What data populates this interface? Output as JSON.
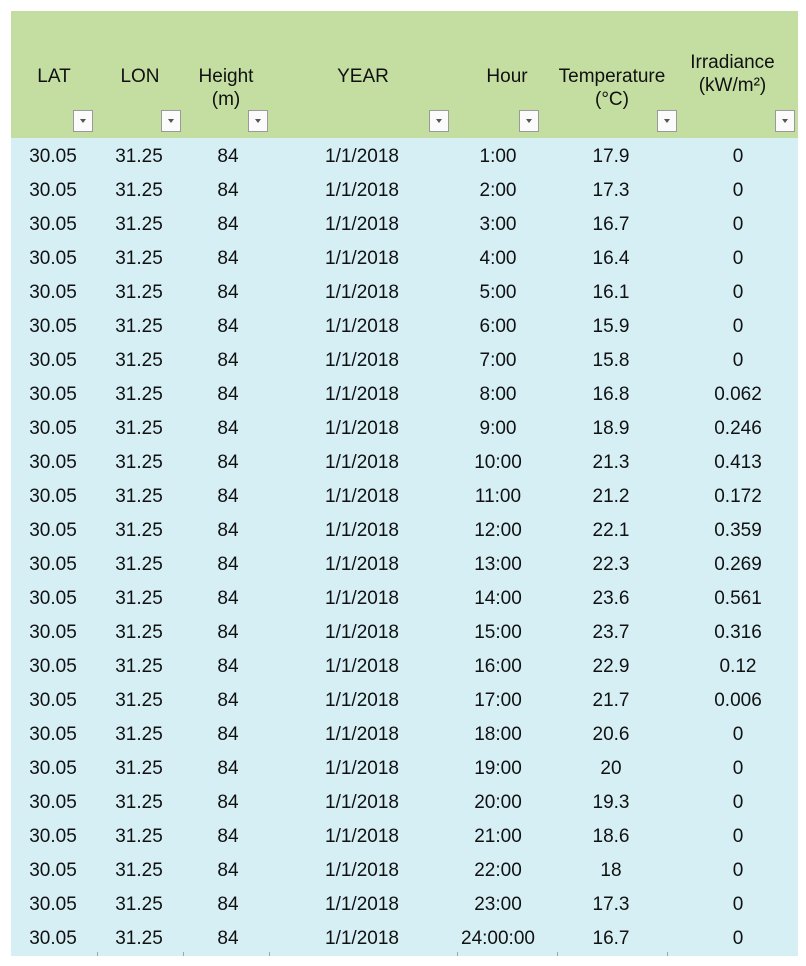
{
  "columns": [
    {
      "key": "lat",
      "label_lines": [
        "LAT"
      ]
    },
    {
      "key": "lon",
      "label_lines": [
        "LON"
      ]
    },
    {
      "key": "height",
      "label_lines": [
        "Height",
        "(m)"
      ]
    },
    {
      "key": "year",
      "label_lines": [
        "YEAR"
      ]
    },
    {
      "key": "hour",
      "label_lines": [
        "Hour"
      ]
    },
    {
      "key": "temperature",
      "label_lines": [
        "Temperature",
        "(°C)"
      ]
    },
    {
      "key": "irradiance",
      "label_lines": [
        "Irradiance",
        "(kW/m²)"
      ]
    }
  ],
  "rows": [
    [
      "30.05",
      "31.25",
      "84",
      "1/1/2018",
      "1:00",
      "17.9",
      "0"
    ],
    [
      "30.05",
      "31.25",
      "84",
      "1/1/2018",
      "2:00",
      "17.3",
      "0"
    ],
    [
      "30.05",
      "31.25",
      "84",
      "1/1/2018",
      "3:00",
      "16.7",
      "0"
    ],
    [
      "30.05",
      "31.25",
      "84",
      "1/1/2018",
      "4:00",
      "16.4",
      "0"
    ],
    [
      "30.05",
      "31.25",
      "84",
      "1/1/2018",
      "5:00",
      "16.1",
      "0"
    ],
    [
      "30.05",
      "31.25",
      "84",
      "1/1/2018",
      "6:00",
      "15.9",
      "0"
    ],
    [
      "30.05",
      "31.25",
      "84",
      "1/1/2018",
      "7:00",
      "15.8",
      "0"
    ],
    [
      "30.05",
      "31.25",
      "84",
      "1/1/2018",
      "8:00",
      "16.8",
      "0.062"
    ],
    [
      "30.05",
      "31.25",
      "84",
      "1/1/2018",
      "9:00",
      "18.9",
      "0.246"
    ],
    [
      "30.05",
      "31.25",
      "84",
      "1/1/2018",
      "10:00",
      "21.3",
      "0.413"
    ],
    [
      "30.05",
      "31.25",
      "84",
      "1/1/2018",
      "11:00",
      "21.2",
      "0.172"
    ],
    [
      "30.05",
      "31.25",
      "84",
      "1/1/2018",
      "12:00",
      "22.1",
      "0.359"
    ],
    [
      "30.05",
      "31.25",
      "84",
      "1/1/2018",
      "13:00",
      "22.3",
      "0.269"
    ],
    [
      "30.05",
      "31.25",
      "84",
      "1/1/2018",
      "14:00",
      "23.6",
      "0.561"
    ],
    [
      "30.05",
      "31.25",
      "84",
      "1/1/2018",
      "15:00",
      "23.7",
      "0.316"
    ],
    [
      "30.05",
      "31.25",
      "84",
      "1/1/2018",
      "16:00",
      "22.9",
      "0.12"
    ],
    [
      "30.05",
      "31.25",
      "84",
      "1/1/2018",
      "17:00",
      "21.7",
      "0.006"
    ],
    [
      "30.05",
      "31.25",
      "84",
      "1/1/2018",
      "18:00",
      "20.6",
      "0"
    ],
    [
      "30.05",
      "31.25",
      "84",
      "1/1/2018",
      "19:00",
      "20",
      "0"
    ],
    [
      "30.05",
      "31.25",
      "84",
      "1/1/2018",
      "20:00",
      "19.3",
      "0"
    ],
    [
      "30.05",
      "31.25",
      "84",
      "1/1/2018",
      "21:00",
      "18.6",
      "0"
    ],
    [
      "30.05",
      "31.25",
      "84",
      "1/1/2018",
      "22:00",
      "18",
      "0"
    ],
    [
      "30.05",
      "31.25",
      "84",
      "1/1/2018",
      "23:00",
      "17.3",
      "0"
    ],
    [
      "30.05",
      "31.25",
      "84",
      "1/1/2018",
      "24:00:00",
      "16.7",
      "0"
    ]
  ],
  "icons": {
    "filter": "filter-dropdown-icon"
  },
  "colors": {
    "header_bg": "#c4dea1",
    "body_bg": "#d6eff5"
  }
}
